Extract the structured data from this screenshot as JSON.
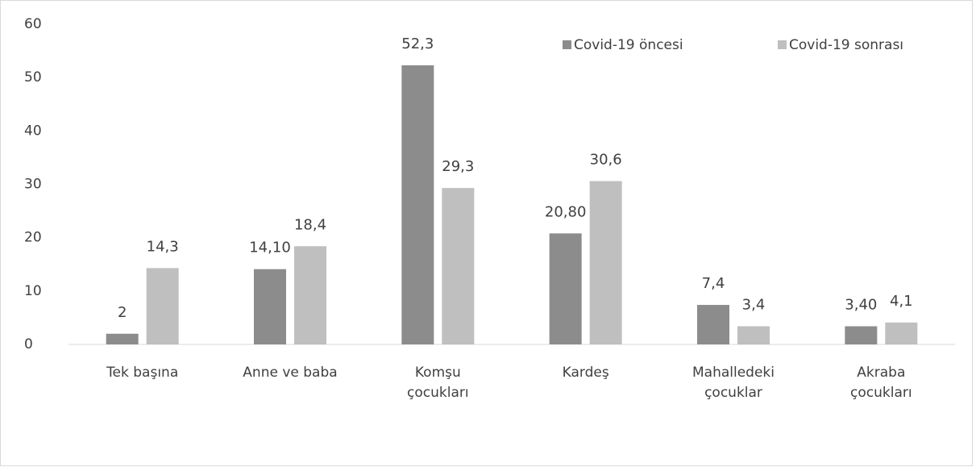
{
  "chart_data": {
    "type": "bar",
    "categories": [
      [
        "Tek başına"
      ],
      [
        "Anne ve baba"
      ],
      [
        "Komşu",
        "çocukları"
      ],
      [
        "Kardeş"
      ],
      [
        "Mahalledeki",
        "çocuklar"
      ],
      [
        "Akraba",
        "çocukları"
      ]
    ],
    "series": [
      {
        "name": "Covid-19 öncesi",
        "color": "#8c8c8c",
        "values": [
          2,
          14.1,
          52.3,
          20.8,
          7.4,
          3.4
        ],
        "value_labels": [
          "2",
          "14,10",
          "52,3",
          "20,80",
          "7,4",
          "3,40"
        ]
      },
      {
        "name": "Covid-19 sonrası",
        "color": "#bfbfbf",
        "values": [
          14.3,
          18.4,
          29.3,
          30.6,
          3.4,
          4.1
        ],
        "value_labels": [
          "14,3",
          "18,4",
          "29,3",
          "30,6",
          "3,4",
          "4,1"
        ]
      }
    ],
    "ylim": [
      0,
      60
    ],
    "yticks": [
      0,
      10,
      20,
      30,
      40,
      50,
      60
    ],
    "grid": false,
    "legend": "top-right"
  }
}
